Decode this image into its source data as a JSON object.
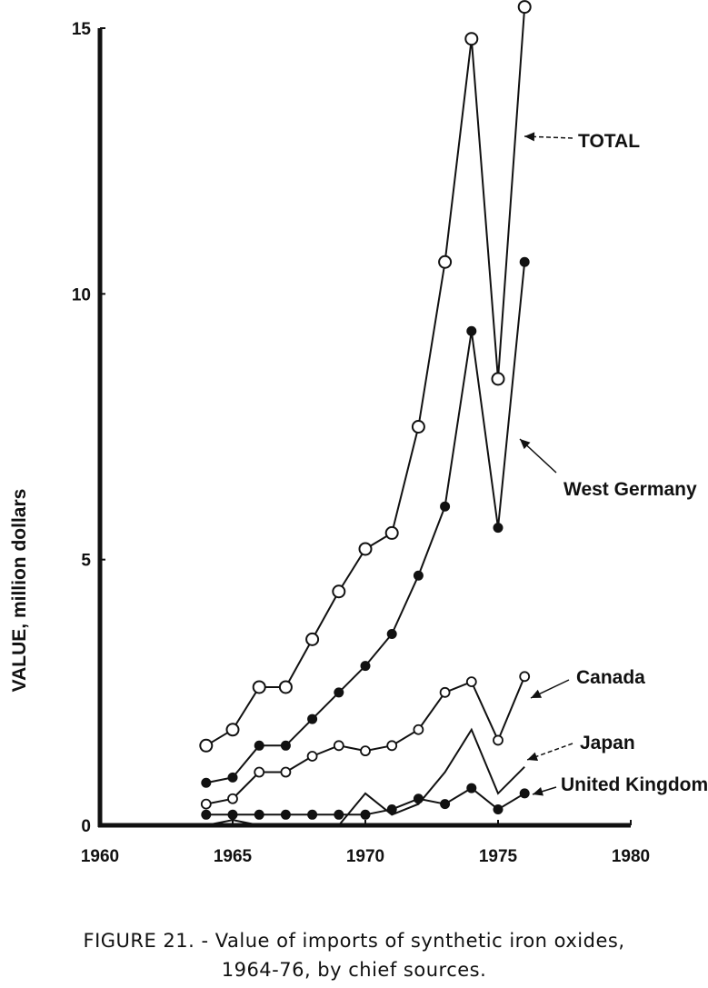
{
  "caption": {
    "line1": "FIGURE 21. - Value of imports of synthetic iron oxides,",
    "line2": "1964-76, by chief sources."
  },
  "chart_data": {
    "type": "line",
    "ylabel": "VALUE, million dollars",
    "xlabel": "",
    "xlim": [
      1960,
      1980
    ],
    "ylim": [
      0,
      15
    ],
    "x_ticks": [
      "1960",
      "1965",
      "1970",
      "1975",
      "1980"
    ],
    "y_ticks": [
      "0",
      "5",
      "10",
      "15"
    ],
    "grid": false,
    "x": [
      1964,
      1965,
      1966,
      1967,
      1968,
      1969,
      1970,
      1971,
      1972,
      1973,
      1974,
      1975,
      1976
    ],
    "series": [
      {
        "name": "TOTAL",
        "marker": "open-circle-large",
        "values": [
          1.5,
          1.8,
          2.6,
          2.6,
          3.5,
          4.4,
          5.2,
          5.5,
          7.5,
          10.6,
          14.8,
          8.4,
          15.4
        ]
      },
      {
        "name": "West Germany",
        "marker": "filled-circle",
        "values": [
          0.8,
          0.9,
          1.5,
          1.5,
          2.0,
          2.5,
          3.0,
          3.6,
          4.7,
          6.0,
          9.3,
          5.6,
          10.6
        ]
      },
      {
        "name": "Canada",
        "marker": "open-circle-small",
        "values": [
          0.4,
          0.5,
          1.0,
          1.0,
          1.3,
          1.5,
          1.4,
          1.5,
          1.8,
          2.5,
          2.7,
          1.6,
          2.8
        ]
      },
      {
        "name": "Japan",
        "marker": "none",
        "values": [
          0.0,
          0.1,
          0.0,
          0.0,
          0.0,
          0.0,
          0.6,
          0.2,
          0.4,
          1.0,
          1.8,
          0.6,
          1.1
        ]
      },
      {
        "name": "United Kingdom",
        "marker": "filled-circle",
        "values": [
          0.2,
          0.2,
          0.2,
          0.2,
          0.2,
          0.2,
          0.2,
          0.3,
          0.5,
          0.4,
          0.7,
          0.3,
          0.6
        ]
      }
    ]
  }
}
